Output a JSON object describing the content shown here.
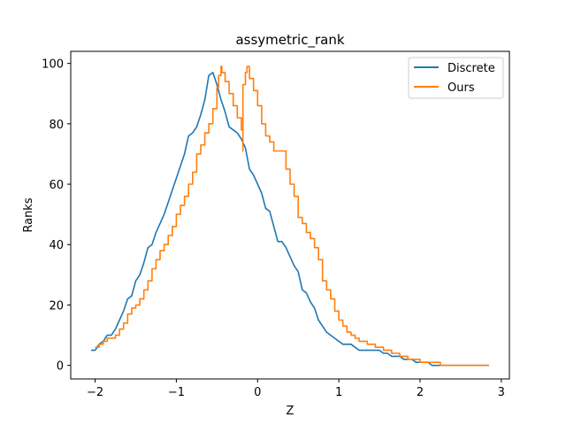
{
  "chart_data": {
    "type": "line",
    "title": "assymetric_rank",
    "xlabel": "Z",
    "ylabel": "Ranks",
    "xlim": [
      -2.3,
      3.1
    ],
    "ylim": [
      -4.5,
      104
    ],
    "xticks": [
      -2,
      -1,
      0,
      1,
      2,
      3
    ],
    "xtick_labels": [
      "−2",
      "−1",
      "0",
      "1",
      "2",
      "3"
    ],
    "yticks": [
      0,
      20,
      40,
      60,
      80,
      100
    ],
    "ytick_labels": [
      "0",
      "20",
      "40",
      "60",
      "80",
      "100"
    ],
    "grid": false,
    "legend_position": "top-right",
    "series": [
      {
        "name": "Discrete",
        "color": "#1f77b4",
        "step": false,
        "points": [
          [
            -2.05,
            5
          ],
          [
            -2.0,
            5
          ],
          [
            -1.95,
            7
          ],
          [
            -1.9,
            8
          ],
          [
            -1.85,
            10
          ],
          [
            -1.8,
            10
          ],
          [
            -1.75,
            12
          ],
          [
            -1.7,
            15
          ],
          [
            -1.65,
            18
          ],
          [
            -1.6,
            22
          ],
          [
            -1.55,
            23
          ],
          [
            -1.5,
            28
          ],
          [
            -1.45,
            30
          ],
          [
            -1.4,
            34
          ],
          [
            -1.35,
            39
          ],
          [
            -1.3,
            40
          ],
          [
            -1.25,
            44
          ],
          [
            -1.2,
            47
          ],
          [
            -1.15,
            50
          ],
          [
            -1.1,
            54
          ],
          [
            -1.05,
            58
          ],
          [
            -1.0,
            62
          ],
          [
            -0.95,
            66
          ],
          [
            -0.9,
            70
          ],
          [
            -0.85,
            76
          ],
          [
            -0.8,
            77
          ],
          [
            -0.75,
            79
          ],
          [
            -0.7,
            83
          ],
          [
            -0.65,
            88
          ],
          [
            -0.6,
            96
          ],
          [
            -0.55,
            97
          ],
          [
            -0.5,
            93
          ],
          [
            -0.45,
            88
          ],
          [
            -0.4,
            84
          ],
          [
            -0.35,
            79
          ],
          [
            -0.3,
            78
          ],
          [
            -0.25,
            77
          ],
          [
            -0.2,
            75
          ],
          [
            -0.15,
            72
          ],
          [
            -0.1,
            65
          ],
          [
            -0.05,
            63
          ],
          [
            0.0,
            60
          ],
          [
            0.05,
            57
          ],
          [
            0.1,
            52
          ],
          [
            0.15,
            51
          ],
          [
            0.2,
            46
          ],
          [
            0.25,
            41
          ],
          [
            0.3,
            41
          ],
          [
            0.35,
            39
          ],
          [
            0.4,
            36
          ],
          [
            0.45,
            33
          ],
          [
            0.5,
            31
          ],
          [
            0.55,
            25
          ],
          [
            0.6,
            24
          ],
          [
            0.65,
            21
          ],
          [
            0.7,
            19
          ],
          [
            0.75,
            15
          ],
          [
            0.8,
            13
          ],
          [
            0.85,
            11
          ],
          [
            0.9,
            10
          ],
          [
            0.95,
            9
          ],
          [
            1.0,
            8
          ],
          [
            1.05,
            7
          ],
          [
            1.1,
            7
          ],
          [
            1.15,
            7
          ],
          [
            1.2,
            6
          ],
          [
            1.25,
            5
          ],
          [
            1.5,
            5
          ],
          [
            1.55,
            4
          ],
          [
            1.6,
            4
          ],
          [
            1.65,
            3
          ],
          [
            1.75,
            3
          ],
          [
            1.8,
            2
          ],
          [
            1.9,
            2
          ],
          [
            1.95,
            1
          ],
          [
            2.1,
            1
          ],
          [
            2.15,
            0
          ],
          [
            2.85,
            0
          ]
        ]
      },
      {
        "name": "Ours",
        "color": "#ff7f0e",
        "step": true,
        "points": [
          [
            -2.0,
            6
          ],
          [
            -1.95,
            7
          ],
          [
            -1.9,
            8
          ],
          [
            -1.85,
            9
          ],
          [
            -1.75,
            10
          ],
          [
            -1.7,
            12
          ],
          [
            -1.65,
            14
          ],
          [
            -1.6,
            17
          ],
          [
            -1.55,
            19
          ],
          [
            -1.5,
            20
          ],
          [
            -1.45,
            22
          ],
          [
            -1.4,
            25
          ],
          [
            -1.35,
            28
          ],
          [
            -1.3,
            32
          ],
          [
            -1.25,
            35
          ],
          [
            -1.2,
            38
          ],
          [
            -1.15,
            40
          ],
          [
            -1.1,
            43
          ],
          [
            -1.05,
            46
          ],
          [
            -1.0,
            50
          ],
          [
            -0.95,
            53
          ],
          [
            -0.9,
            56
          ],
          [
            -0.85,
            60
          ],
          [
            -0.8,
            64
          ],
          [
            -0.75,
            70
          ],
          [
            -0.7,
            73
          ],
          [
            -0.65,
            77
          ],
          [
            -0.6,
            80
          ],
          [
            -0.55,
            85
          ],
          [
            -0.5,
            92
          ],
          [
            -0.48,
            96
          ],
          [
            -0.45,
            99
          ],
          [
            -0.44,
            97
          ],
          [
            -0.4,
            94
          ],
          [
            -0.35,
            90
          ],
          [
            -0.3,
            86
          ],
          [
            -0.25,
            82
          ],
          [
            -0.2,
            78
          ],
          [
            -0.18,
            71
          ],
          [
            -0.18,
            93
          ],
          [
            -0.15,
            97
          ],
          [
            -0.13,
            99
          ],
          [
            -0.1,
            95
          ],
          [
            -0.05,
            91
          ],
          [
            0.0,
            86
          ],
          [
            0.05,
            80
          ],
          [
            0.1,
            76
          ],
          [
            0.15,
            74
          ],
          [
            0.2,
            71
          ],
          [
            0.35,
            65
          ],
          [
            0.4,
            60
          ],
          [
            0.45,
            56
          ],
          [
            0.5,
            49
          ],
          [
            0.55,
            47
          ],
          [
            0.6,
            44
          ],
          [
            0.65,
            42
          ],
          [
            0.7,
            39
          ],
          [
            0.75,
            35
          ],
          [
            0.8,
            28
          ],
          [
            0.85,
            25
          ],
          [
            0.9,
            22
          ],
          [
            0.95,
            18
          ],
          [
            1.0,
            15
          ],
          [
            1.05,
            13
          ],
          [
            1.1,
            11
          ],
          [
            1.15,
            10
          ],
          [
            1.2,
            9
          ],
          [
            1.25,
            8
          ],
          [
            1.35,
            7
          ],
          [
            1.45,
            6
          ],
          [
            1.55,
            5
          ],
          [
            1.65,
            4
          ],
          [
            1.75,
            3
          ],
          [
            1.85,
            2
          ],
          [
            2.0,
            1
          ],
          [
            2.25,
            0
          ],
          [
            2.85,
            0
          ]
        ]
      }
    ]
  }
}
